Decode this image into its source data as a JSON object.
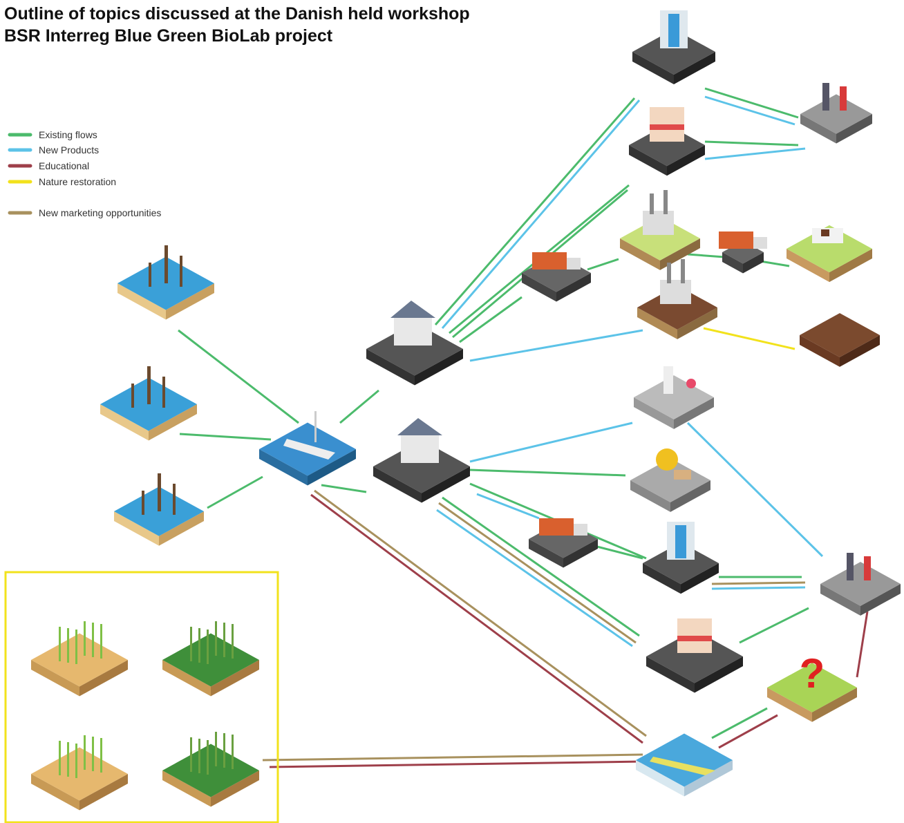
{
  "header": {
    "title_lines": [
      "Outline of topics discussed at the Danish held workshop",
      "BSR Interreg Blue Green BioLab project"
    ]
  },
  "legend": [
    {
      "label": "Existing flows",
      "color": "#4cbb6c"
    },
    {
      "label": "New Products",
      "color": "#5cc3e8"
    },
    {
      "label": "Educational",
      "color": "#9e3f4a"
    },
    {
      "label": "Nature restoration",
      "color": "#f2e21c"
    },
    {
      "label": "New marketing opportunities",
      "color": "#a8915e"
    }
  ]
}
